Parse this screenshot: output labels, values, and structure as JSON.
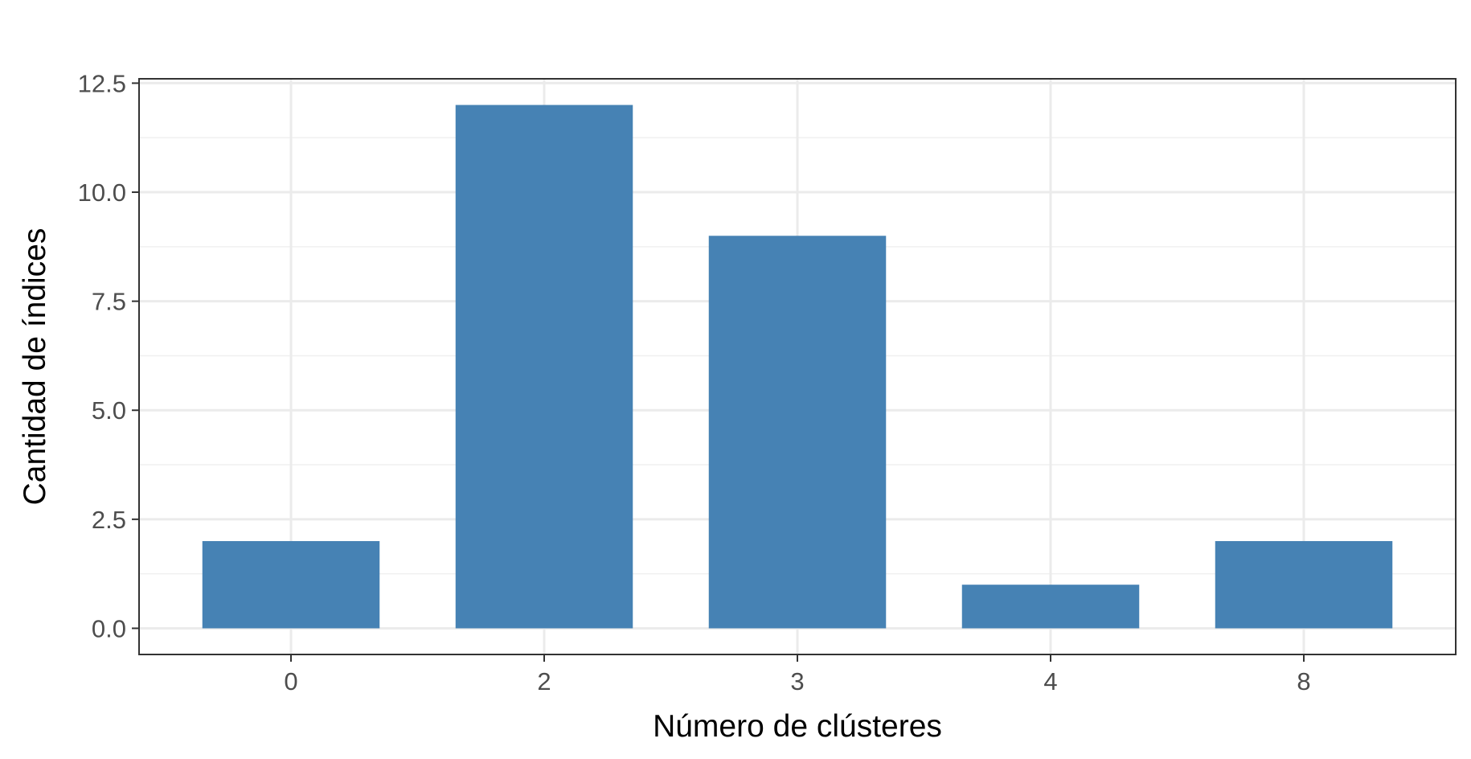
{
  "chart_data": {
    "type": "bar",
    "title": "",
    "xlabel": "Número de clústeres",
    "ylabel": "Cantidad de índices",
    "categories": [
      "0",
      "2",
      "3",
      "4",
      "8"
    ],
    "values": [
      2,
      12,
      9,
      1,
      2
    ],
    "ylim": [
      -0.6,
      12.6
    ],
    "yticks": [
      0.0,
      2.5,
      5.0,
      7.5,
      10.0,
      12.5
    ],
    "ytick_labels": [
      "0.0",
      "2.5",
      "5.0",
      "7.5",
      "10.0",
      "12.5"
    ],
    "grid": true,
    "legend": "none",
    "bar_color": "#4682B4"
  }
}
